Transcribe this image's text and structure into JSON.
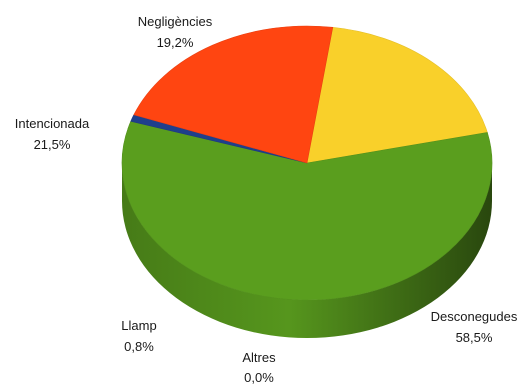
{
  "chart_data": {
    "type": "pie",
    "style": "3d",
    "title": "",
    "slices": [
      {
        "label": "Negligències",
        "value": 19.2,
        "value_label": "19,2%",
        "color": "#F9D02A"
      },
      {
        "label": "Desconegudes",
        "value": 58.5,
        "value_label": "58,5%",
        "color": "#5A9E1E"
      },
      {
        "label": "Altres",
        "value": 0.0,
        "value_label": "0,0%",
        "color": "#7F7F7F"
      },
      {
        "label": "Llamp",
        "value": 0.8,
        "value_label": "0,8%",
        "color": "#1F3F8C"
      },
      {
        "label": "Intencionada",
        "value": 21.5,
        "value_label": "21,5%",
        "color": "#FF4511"
      }
    ]
  }
}
